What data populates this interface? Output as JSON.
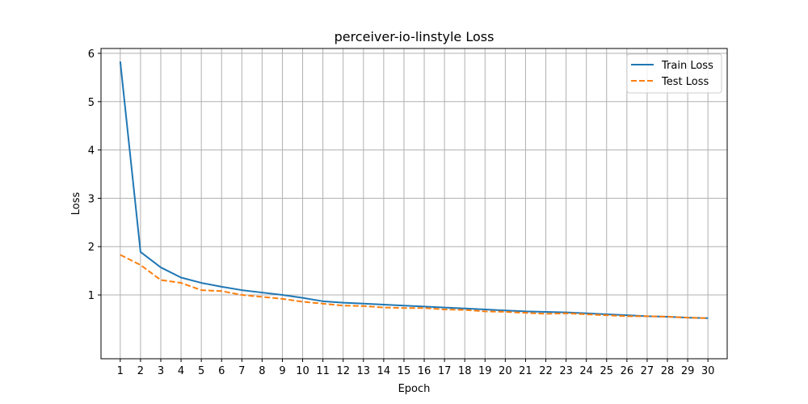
{
  "chart_data": {
    "type": "line",
    "title": "perceiver-io-linstyle Loss",
    "xlabel": "Epoch",
    "ylabel": "Loss",
    "x": [
      1,
      2,
      3,
      4,
      5,
      6,
      7,
      8,
      9,
      10,
      11,
      12,
      13,
      14,
      15,
      16,
      17,
      18,
      19,
      20,
      21,
      22,
      23,
      24,
      25,
      26,
      27,
      28,
      29,
      30
    ],
    "xlim": [
      0.05,
      30.95
    ],
    "ylim": [
      -0.32,
      6.1
    ],
    "yticks": [
      1,
      2,
      3,
      4,
      5,
      6
    ],
    "grid": true,
    "legend_position": "top-right",
    "series": [
      {
        "name": "Train Loss",
        "color": "#1f77b4",
        "style": "solid",
        "values": [
          5.83,
          1.89,
          1.57,
          1.36,
          1.25,
          1.17,
          1.1,
          1.05,
          1.0,
          0.94,
          0.87,
          0.84,
          0.82,
          0.8,
          0.78,
          0.76,
          0.74,
          0.72,
          0.7,
          0.68,
          0.66,
          0.65,
          0.64,
          0.62,
          0.6,
          0.58,
          0.56,
          0.55,
          0.53,
          0.52
        ]
      },
      {
        "name": "Test Loss",
        "color": "#ff7f0e",
        "style": "dashed",
        "values": [
          1.83,
          1.62,
          1.31,
          1.25,
          1.1,
          1.08,
          1.0,
          0.96,
          0.92,
          0.86,
          0.82,
          0.78,
          0.77,
          0.74,
          0.73,
          0.73,
          0.7,
          0.69,
          0.66,
          0.65,
          0.63,
          0.61,
          0.62,
          0.6,
          0.58,
          0.56,
          0.56,
          0.55,
          0.53,
          0.52
        ]
      }
    ]
  }
}
